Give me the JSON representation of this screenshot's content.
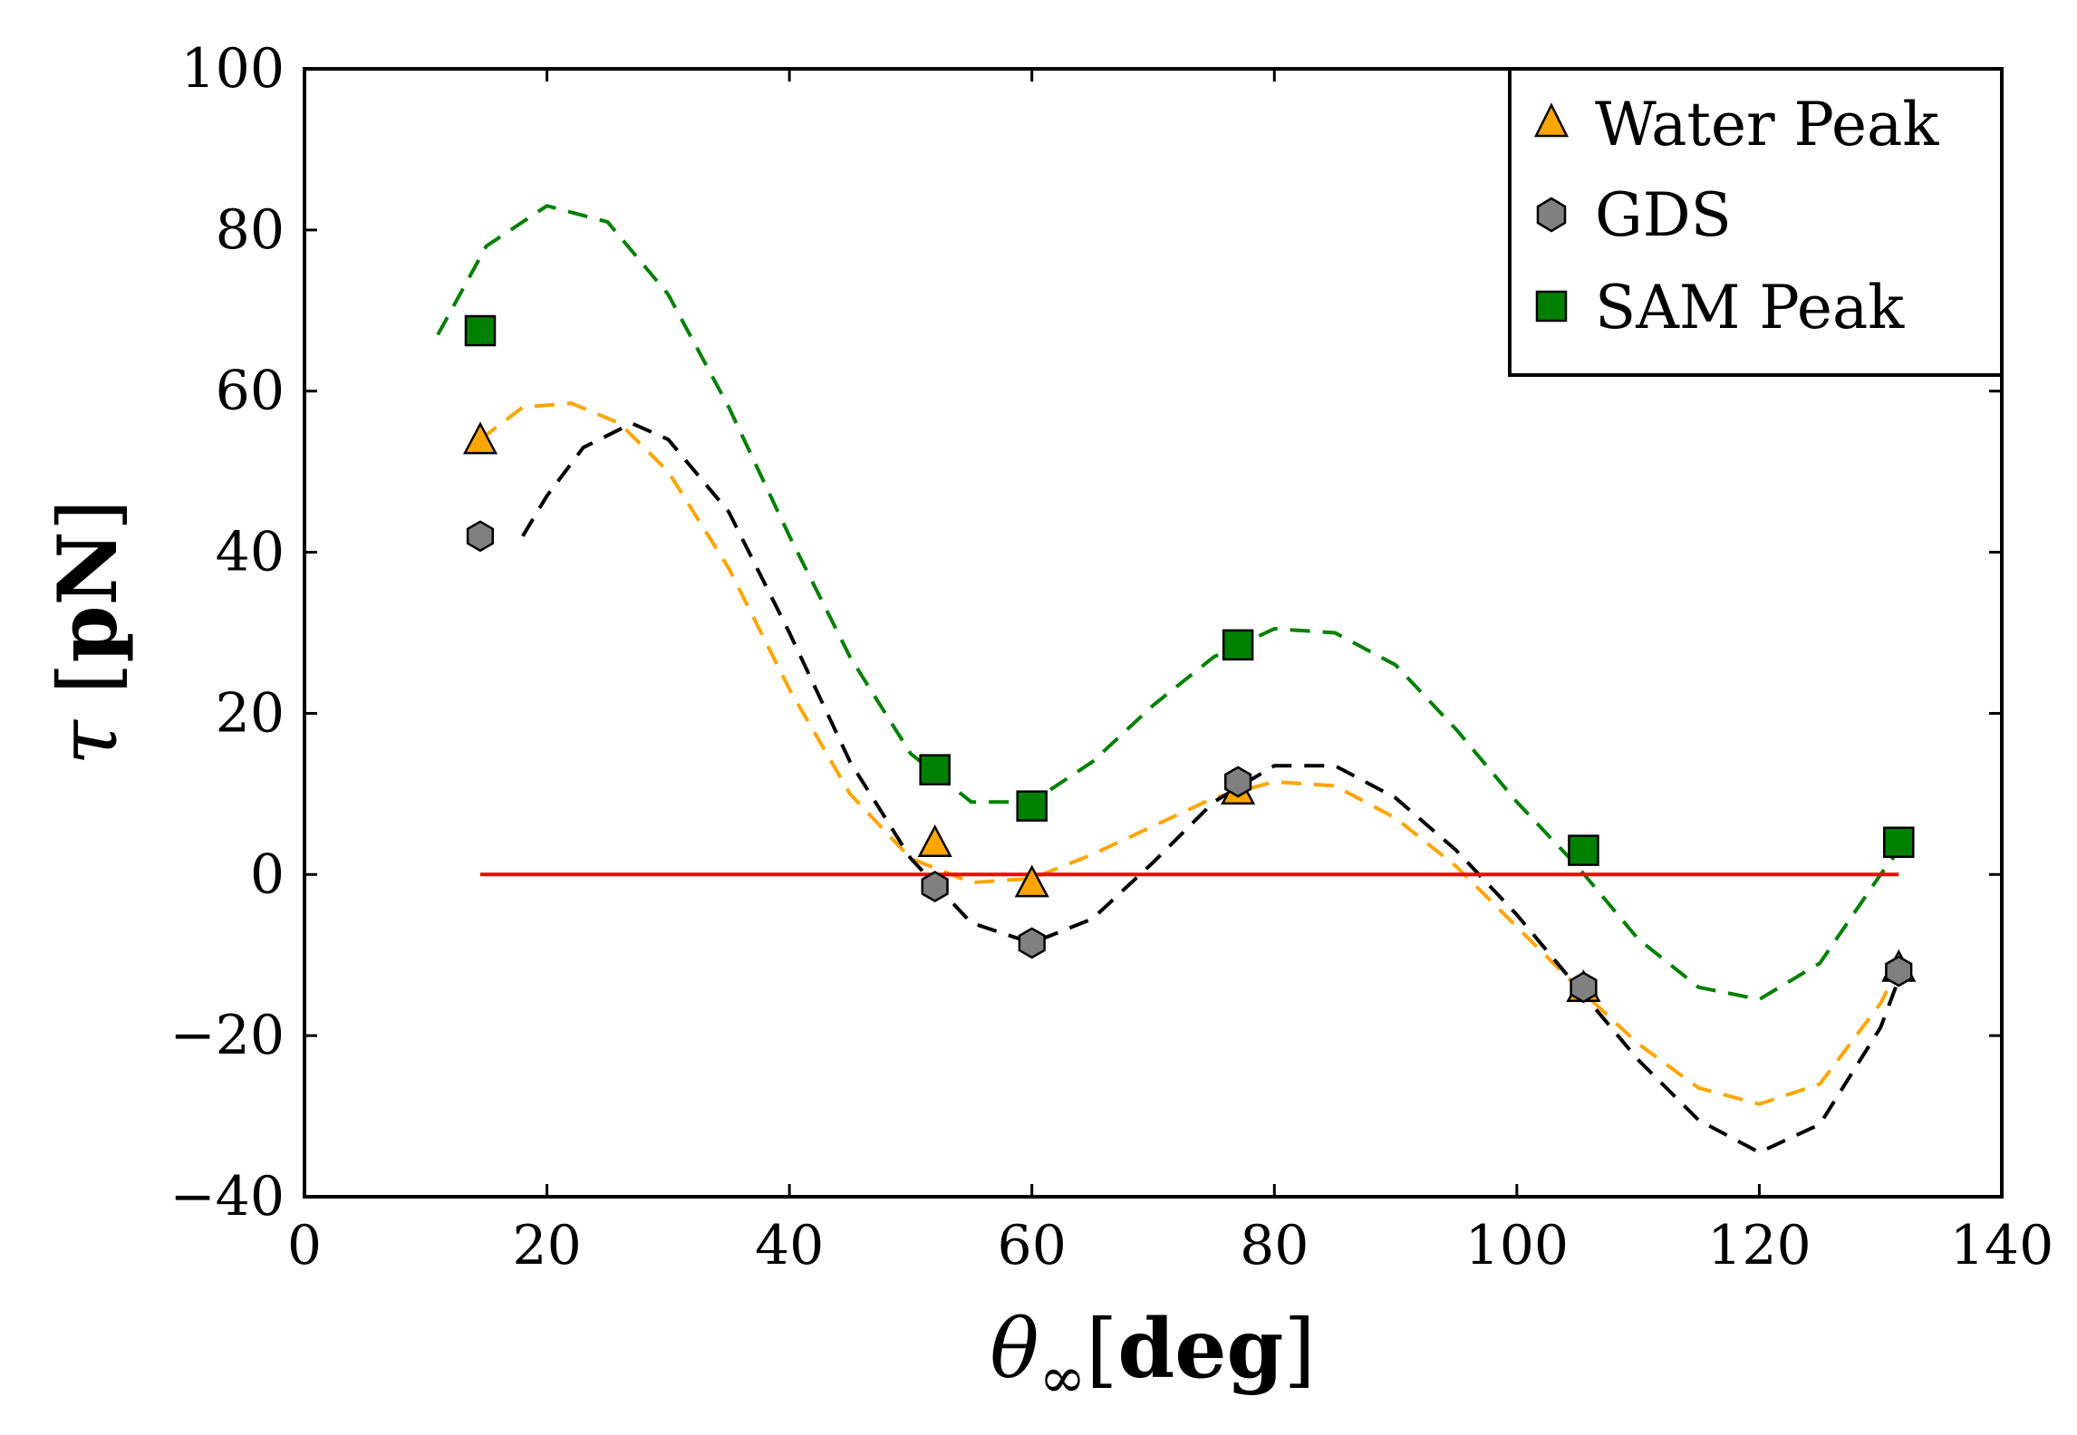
{
  "chart_data": {
    "type": "scatter",
    "xlabel": {
      "symbol": "θ",
      "subscript": "∞",
      "unit": "deg"
    },
    "ylabel": {
      "symbol": "τ",
      "unit": "pN"
    },
    "xlim": [
      0,
      140
    ],
    "ylim": [
      -40,
      100
    ],
    "xticks": [
      0,
      20,
      40,
      60,
      80,
      100,
      120,
      140
    ],
    "yticks": [
      -40,
      -20,
      0,
      20,
      40,
      60,
      80,
      100
    ],
    "xtick_labels": [
      "0",
      "20",
      "40",
      "60",
      "80",
      "100",
      "120",
      "140"
    ],
    "ytick_labels": [
      "−40",
      "−20",
      "0",
      "20",
      "40",
      "60",
      "80",
      "100"
    ],
    "grid": false,
    "legend_position": "top-right",
    "series": [
      {
        "name": "Water Peak",
        "marker": "triangle",
        "color": "#FFA500",
        "x": [
          14.5,
          52,
          60,
          77,
          105.5,
          131.5
        ],
        "y": [
          54,
          4,
          -1,
          10.5,
          -14,
          -11.5
        ]
      },
      {
        "name": "GDS",
        "marker": "hexagon",
        "color": "#808080",
        "x": [
          14.5,
          52,
          60,
          77,
          105.5,
          131.5
        ],
        "y": [
          42,
          -1.5,
          -8.5,
          11.5,
          -14,
          -12
        ]
      },
      {
        "name": "SAM Peak",
        "marker": "square",
        "color": "#008000",
        "x": [
          14.5,
          52,
          60,
          77,
          105.5,
          131.5
        ],
        "y": [
          67.5,
          13,
          8.5,
          28.5,
          3,
          4
        ]
      }
    ],
    "fit_curves": [
      {
        "color": "#008000",
        "style": "dashed",
        "x": [
          11,
          15,
          20,
          25,
          30,
          35,
          40,
          45,
          50,
          55,
          60,
          65,
          70,
          75,
          80,
          85,
          90,
          95,
          100,
          105,
          110,
          115,
          120,
          125,
          130,
          132
        ],
        "y": [
          67,
          78,
          83,
          81,
          72,
          58,
          42,
          27,
          15,
          9,
          9,
          14,
          21,
          27,
          30.5,
          30,
          26,
          18,
          9,
          1,
          -8,
          -14,
          -15.5,
          -11,
          0,
          4
        ]
      },
      {
        "color": "#FFA500",
        "style": "dashed",
        "x": [
          14.5,
          18,
          22,
          26,
          30,
          35,
          40,
          45,
          50,
          55,
          60,
          65,
          70,
          75,
          80,
          85,
          90,
          95,
          100,
          105,
          110,
          115,
          120,
          125,
          130,
          132
        ],
        "y": [
          54,
          58,
          58.5,
          56,
          50,
          38,
          23,
          10,
          2,
          -1,
          -0.5,
          2.5,
          6,
          9.5,
          11.5,
          11,
          7,
          1,
          -6.5,
          -14,
          -21,
          -26.5,
          -28.5,
          -26,
          -16,
          -10
        ]
      },
      {
        "color": "#000000",
        "style": "dashed",
        "x": [
          18,
          20,
          23,
          27,
          30,
          35,
          40,
          45,
          50,
          55,
          60,
          65,
          70,
          75,
          80,
          85,
          90,
          95,
          100,
          105,
          110,
          115,
          120,
          125,
          130,
          132
        ],
        "y": [
          42,
          47,
          53,
          56,
          54,
          45,
          30,
          14,
          2,
          -6,
          -8.5,
          -5.5,
          1.5,
          9,
          13.5,
          13.5,
          9.5,
          3,
          -5,
          -14,
          -23,
          -30.5,
          -34.5,
          -31,
          -19,
          -11
        ]
      },
      {
        "color": "#FF0000",
        "style": "solid",
        "x": [
          14.5,
          131.5
        ],
        "y": [
          0,
          0
        ]
      }
    ]
  }
}
